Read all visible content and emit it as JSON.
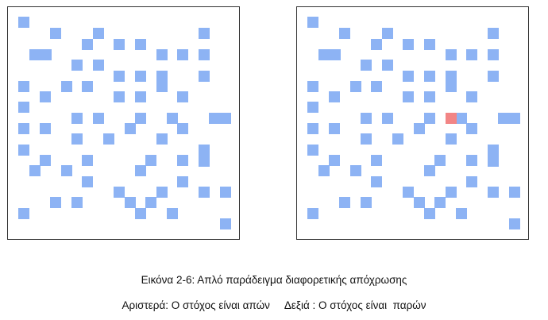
{
  "caption": {
    "title": "Εικόνα 2-6: Απλό παράδειγμα διαφορετικής απόχρωσης",
    "subtitle": "Αριστερά: Ο στόχος είναι απών     Δεξιά : Ο στόχος είναι  παρών"
  },
  "colors": {
    "distractor": "#8db3f4",
    "target": "#f28585",
    "border": "#333333"
  },
  "panels": [
    {
      "name": "left",
      "target_present": false
    },
    {
      "name": "right",
      "target_present": true
    }
  ]
}
